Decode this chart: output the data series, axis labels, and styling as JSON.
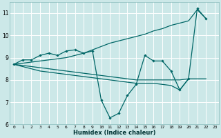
{
  "xlabel": "Humidex (Indice chaleur)",
  "background_color": "#cce8e8",
  "grid_color": "#ffffff",
  "line_color": "#006666",
  "xlim": [
    -0.5,
    23.5
  ],
  "ylim": [
    6,
    11.5
  ],
  "yticks": [
    6,
    7,
    8,
    9,
    10,
    11
  ],
  "xticks": [
    0,
    1,
    2,
    3,
    4,
    5,
    6,
    7,
    8,
    9,
    10,
    11,
    12,
    13,
    14,
    15,
    16,
    17,
    18,
    19,
    20,
    21,
    22,
    23
  ],
  "series": [
    {
      "x": [
        0,
        1,
        2,
        3,
        4,
        5,
        6,
        7,
        8,
        9,
        10,
        11,
        12,
        13,
        14,
        15,
        16,
        17,
        18,
        19,
        20,
        21,
        22
      ],
      "y": [
        8.7,
        8.9,
        8.9,
        9.1,
        9.2,
        9.1,
        9.3,
        9.35,
        9.2,
        9.3,
        7.1,
        6.3,
        6.5,
        7.3,
        7.8,
        9.1,
        8.85,
        8.85,
        8.4,
        7.55,
        8.05,
        11.2,
        10.75
      ],
      "marker": true
    },
    {
      "x": [
        0,
        1,
        2,
        3,
        4,
        5,
        6,
        7,
        8,
        9,
        10,
        11,
        12,
        13,
        14,
        15,
        16,
        17,
        18,
        19,
        20,
        21,
        22
      ],
      "y": [
        8.7,
        8.75,
        8.8,
        8.85,
        8.9,
        8.95,
        9.0,
        9.1,
        9.2,
        9.35,
        9.5,
        9.65,
        9.75,
        9.85,
        9.95,
        10.05,
        10.2,
        10.3,
        10.45,
        10.55,
        10.65,
        11.15,
        10.75
      ],
      "marker": false
    },
    {
      "x": [
        0,
        1,
        2,
        3,
        4,
        5,
        6,
        7,
        8,
        9,
        10,
        11,
        12,
        13,
        14,
        15,
        16,
        17,
        18,
        19,
        20,
        21,
        22
      ],
      "y": [
        8.7,
        8.65,
        8.6,
        8.55,
        8.5,
        8.45,
        8.4,
        8.35,
        8.3,
        8.25,
        8.2,
        8.15,
        8.1,
        8.05,
        8.0,
        8.0,
        8.0,
        8.0,
        8.0,
        8.0,
        8.05,
        8.05,
        8.05
      ],
      "marker": false
    },
    {
      "x": [
        0,
        1,
        2,
        3,
        4,
        5,
        6,
        7,
        8,
        9,
        10,
        11,
        12,
        13,
        14,
        15,
        16,
        17,
        18,
        19,
        20
      ],
      "y": [
        8.7,
        8.6,
        8.5,
        8.4,
        8.35,
        8.3,
        8.25,
        8.2,
        8.15,
        8.1,
        8.05,
        8.0,
        7.95,
        7.9,
        7.85,
        7.85,
        7.85,
        7.8,
        7.75,
        7.55,
        8.05
      ],
      "marker": false
    }
  ]
}
